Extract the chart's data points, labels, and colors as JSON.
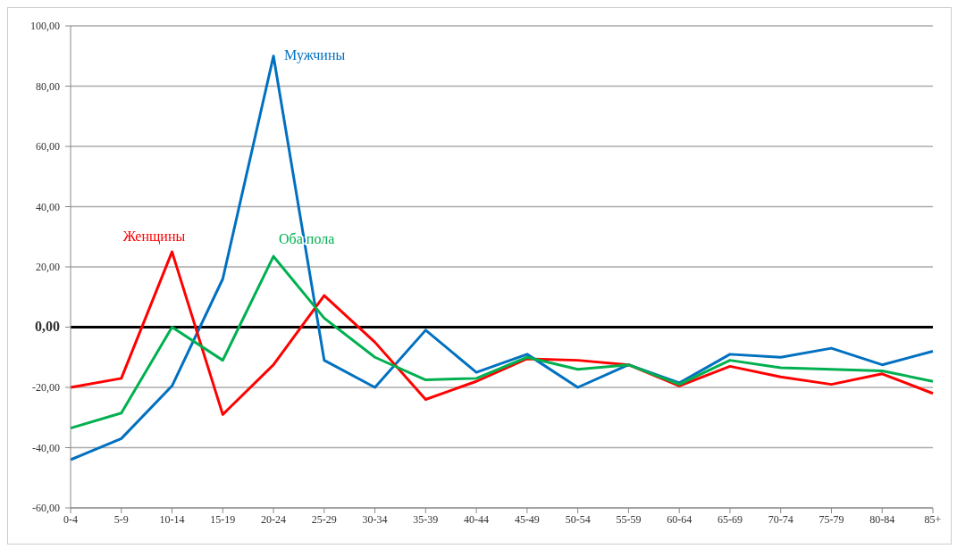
{
  "chart_data": {
    "type": "line",
    "categories": [
      "0-4",
      "5-9",
      "10-14",
      "15-19",
      "20-24",
      "25-29",
      "30-34",
      "35-39",
      "40-44",
      "45-49",
      "50-54",
      "55-59",
      "60-64",
      "65-69",
      "70-74",
      "75-79",
      "80-84",
      "85+"
    ],
    "series": [
      {
        "name": "Мужчины",
        "color": "#0070c0",
        "values": [
          -44,
          -37,
          -19.5,
          16,
          90,
          -11,
          -20,
          -1,
          -15,
          -9,
          -20,
          -12.5,
          -18.5,
          -9,
          -10,
          -7,
          -12.5,
          -8
        ]
      },
      {
        "name": "Женщины",
        "color": "#ff0000",
        "values": [
          -20,
          -17,
          25,
          -29,
          -12.5,
          10.5,
          -5,
          -24,
          -18,
          -10.5,
          -11,
          -12.5,
          -19.5,
          -13,
          -16.5,
          -19,
          -15.5,
          -22
        ]
      },
      {
        "name": "Оба пола",
        "color": "#00b050",
        "values": [
          -33.5,
          -28.5,
          0,
          -11,
          23.5,
          3,
          -10,
          -17.5,
          -17,
          -10,
          -14,
          -12.5,
          -19,
          -11,
          -13.5,
          -14,
          -14.5,
          -18
        ]
      }
    ],
    "ylim": [
      -60,
      100
    ],
    "yticks": [
      {
        "value": -60,
        "label": "-60,00"
      },
      {
        "value": -40,
        "label": "-40,00"
      },
      {
        "value": -20,
        "label": "-20,00"
      },
      {
        "value": 0,
        "label": "0,00"
      },
      {
        "value": 20,
        "label": "20,00"
      },
      {
        "value": 40,
        "label": "40,00"
      },
      {
        "value": 60,
        "label": "60,00"
      },
      {
        "value": 80,
        "label": "80,00"
      },
      {
        "value": 100,
        "label": "100,00"
      }
    ],
    "grid": "y",
    "legend": false,
    "marker": "none",
    "line_style": "solid",
    "ref_lines": [
      {
        "axis": "y",
        "value": 0,
        "color": "#000000"
      }
    ]
  }
}
